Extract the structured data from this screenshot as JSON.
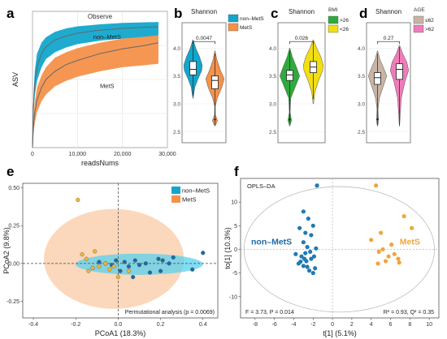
{
  "panels": {
    "a": "a",
    "b": "b",
    "c": "c",
    "d": "d",
    "e": "e",
    "f": "f"
  },
  "chart_data": [
    {
      "panel": "a",
      "type": "area",
      "title": "Observe",
      "xlabel": "readsNums",
      "ylabel": "ASV",
      "xlim": [
        0,
        30000
      ],
      "ylim": [
        0,
        1000
      ],
      "xticks": [
        0,
        10000,
        20000,
        30000
      ],
      "xtick_labels": [
        "0",
        "10,000",
        "20,000",
        "30,000"
      ],
      "yticks": [
        0,
        250,
        500,
        750,
        1000
      ],
      "grid": true,
      "series": [
        {
          "name": "non–MetS",
          "color": "#12a6cc",
          "x": [
            0,
            200,
            500,
            1000,
            2000,
            3000,
            5000,
            7500,
            10000,
            15000,
            20000,
            25000,
            28000
          ],
          "mean": [
            0,
            300,
            470,
            590,
            690,
            740,
            790,
            820,
            840,
            862,
            875,
            883,
            887
          ],
          "lower": [
            0,
            230,
            380,
            490,
            590,
            650,
            700,
            735,
            760,
            785,
            800,
            810,
            815
          ],
          "upper": [
            0,
            370,
            560,
            690,
            770,
            810,
            850,
            875,
            890,
            905,
            915,
            920,
            922
          ]
        },
        {
          "name": "MetS",
          "color": "#f4914a",
          "x": [
            0,
            200,
            500,
            1000,
            2000,
            3000,
            5000,
            7500,
            10000,
            15000,
            20000,
            25000,
            28000
          ],
          "mean": [
            0,
            150,
            260,
            350,
            440,
            500,
            560,
            610,
            640,
            690,
            725,
            750,
            770
          ],
          "lower": [
            0,
            100,
            180,
            260,
            340,
            390,
            450,
            490,
            520,
            560,
            590,
            605,
            615
          ],
          "upper": [
            0,
            200,
            330,
            440,
            530,
            590,
            660,
            700,
            730,
            770,
            800,
            815,
            825
          ]
        }
      ]
    },
    {
      "panel": "b",
      "type": "violin",
      "title": "Shannon",
      "ylim": [
        2.3,
        4.4
      ],
      "yticks": [
        2.5,
        3.0,
        3.5,
        4.0
      ],
      "annotation": "0.0047",
      "legend": {
        "title": "",
        "entries": [
          "non–MetS",
          "MetS"
        ]
      },
      "series": [
        {
          "name": "non–MetS",
          "color": "#12a6cc",
          "min": 3.15,
          "q1": 3.52,
          "median": 3.62,
          "q3": 3.76,
          "max": 4.12,
          "profile": [
            [
              3.1,
              0.02
            ],
            [
              3.3,
              0.2
            ],
            [
              3.45,
              0.55
            ],
            [
              3.6,
              0.95
            ],
            [
              3.7,
              1.0
            ],
            [
              3.85,
              0.7
            ],
            [
              4.0,
              0.3
            ],
            [
              4.15,
              0.02
            ]
          ]
        },
        {
          "name": "MetS",
          "color": "#f4914a",
          "min": 2.62,
          "q1": 3.27,
          "median": 3.42,
          "q3": 3.5,
          "max": 3.9,
          "outliers": [
            2.72
          ],
          "profile": [
            [
              2.6,
              0.02
            ],
            [
              2.7,
              0.28
            ],
            [
              2.8,
              0.05
            ],
            [
              2.95,
              0.03
            ],
            [
              3.1,
              0.25
            ],
            [
              3.3,
              0.75
            ],
            [
              3.45,
              1.0
            ],
            [
              3.6,
              0.6
            ],
            [
              3.8,
              0.2
            ],
            [
              3.95,
              0.02
            ]
          ]
        }
      ]
    },
    {
      "panel": "c",
      "type": "violin",
      "title": "Shannon",
      "ylim": [
        2.3,
        4.4
      ],
      "yticks": [
        2.5,
        3.0,
        3.5,
        4.0
      ],
      "annotation": "0.026",
      "legend": {
        "title": "BMI",
        "entries": [
          ">26",
          "<26"
        ]
      },
      "series": [
        {
          "name": ">26",
          "color": "#2faa3c",
          "min": 2.66,
          "q1": 3.42,
          "median": 3.52,
          "q3": 3.6,
          "max": 3.95,
          "outliers": [
            2.72
          ],
          "profile": [
            [
              2.6,
              0.02
            ],
            [
              2.7,
              0.18
            ],
            [
              2.85,
              0.04
            ],
            [
              3.1,
              0.1
            ],
            [
              3.3,
              0.55
            ],
            [
              3.5,
              1.0
            ],
            [
              3.65,
              0.7
            ],
            [
              3.85,
              0.25
            ],
            [
              4.0,
              0.02
            ]
          ]
        },
        {
          "name": "<26",
          "color": "#f2de12",
          "min": 3.08,
          "q1": 3.56,
          "median": 3.66,
          "q3": 3.76,
          "max": 4.12,
          "profile": [
            [
              3.0,
              0.02
            ],
            [
              3.2,
              0.15
            ],
            [
              3.4,
              0.5
            ],
            [
              3.6,
              0.95
            ],
            [
              3.7,
              1.0
            ],
            [
              3.85,
              0.75
            ],
            [
              4.0,
              0.35
            ],
            [
              4.15,
              0.02
            ]
          ]
        }
      ]
    },
    {
      "panel": "d",
      "type": "violin",
      "title": "Shannon",
      "ylim": [
        2.3,
        4.4
      ],
      "yticks": [
        2.5,
        3.0,
        3.5,
        4.0
      ],
      "annotation": "0.27",
      "legend": {
        "title": "AGE",
        "entries": [
          "≤62",
          ">62"
        ]
      },
      "series": [
        {
          "name": "≤62",
          "color": "#c9b4a5",
          "min": 2.62,
          "q1": 3.35,
          "median": 3.47,
          "q3": 3.56,
          "max": 3.9,
          "outliers": [
            2.72
          ],
          "profile": [
            [
              2.6,
              0.02
            ],
            [
              2.7,
              0.12
            ],
            [
              2.9,
              0.05
            ],
            [
              3.1,
              0.2
            ],
            [
              3.3,
              0.6
            ],
            [
              3.5,
              1.0
            ],
            [
              3.65,
              0.65
            ],
            [
              3.8,
              0.25
            ],
            [
              3.95,
              0.02
            ]
          ]
        },
        {
          "name": ">62",
          "color": "#f07cba",
          "min": 2.62,
          "q1": 3.44,
          "median": 3.62,
          "q3": 3.72,
          "max": 4.02,
          "profile": [
            [
              2.6,
              0.02
            ],
            [
              2.8,
              0.08
            ],
            [
              3.1,
              0.2
            ],
            [
              3.4,
              0.6
            ],
            [
              3.6,
              1.0
            ],
            [
              3.75,
              0.8
            ],
            [
              3.9,
              0.35
            ],
            [
              4.05,
              0.02
            ]
          ]
        }
      ]
    },
    {
      "panel": "e",
      "type": "scatter",
      "xlabel": "PCoA1 (18.3%)",
      "ylabel": "PCoA2 (9.8%)",
      "xlim": [
        -0.45,
        0.47
      ],
      "ylim": [
        -0.36,
        0.53
      ],
      "xticks": [
        -0.4,
        -0.2,
        0.0,
        0.2,
        0.4
      ],
      "yticks": [
        -0.25,
        0.0,
        0.25,
        0.5
      ],
      "annotation": "Permutational analysis (p = 0.0069)",
      "legend": {
        "entries": [
          "non–MetS",
          "MetS"
        ]
      },
      "ellipses": [
        {
          "name": "MetS",
          "color": "#f9c9a6",
          "cx": -0.02,
          "cy": 0.03,
          "rx": 0.33,
          "ry": 0.33
        },
        {
          "name": "non–MetS",
          "color": "#58d2ef",
          "cx": 0.1,
          "cy": -0.005,
          "rx": 0.3,
          "ry": 0.07
        }
      ],
      "series": [
        {
          "name": "non–MetS",
          "color": "#1c6aa5",
          "x": [
            0.4,
            0.35,
            0.24,
            0.21,
            0.2,
            0.19,
            0.13,
            0.1,
            0.08,
            0.05,
            0.03,
            0.01,
            -0.01,
            -0.03,
            -0.06,
            -0.09,
            -0.12,
            0.07,
            0.15,
            0.26
          ],
          "y": [
            0.07,
            -0.04,
            0.0,
            0.02,
            -0.05,
            0.03,
            0.0,
            -0.01,
            0.02,
            -0.02,
            0.01,
            -0.05,
            0.02,
            -0.01,
            0.0,
            0.01,
            -0.03,
            -0.09,
            -0.06,
            0.04
          ]
        },
        {
          "name": "MetS",
          "color": "#f2b335",
          "x": [
            -0.19,
            -0.17,
            -0.15,
            -0.12,
            -0.11,
            -0.09,
            -0.06,
            -0.04,
            0.0,
            0.05,
            -0.14,
            -0.02
          ],
          "y": [
            0.42,
            0.06,
            0.03,
            -0.03,
            0.08,
            -0.02,
            0.0,
            -0.04,
            -0.09,
            -0.05,
            -0.05,
            -0.02
          ]
        }
      ]
    },
    {
      "panel": "f",
      "type": "scatter",
      "title": "OPLS–DA",
      "xlabel": "t[1] (5.1%)",
      "ylabel": "to[1] (10.3%)",
      "xlim": [
        -9.5,
        11.0
      ],
      "ylim": [
        -14.5,
        15.0
      ],
      "xticks": [
        -8,
        -6,
        -4,
        -2,
        0,
        2,
        4,
        6,
        8,
        10
      ],
      "yticks": [
        -10,
        -5,
        0,
        5,
        10
      ],
      "annotations": [
        "F = 3.73, P = 0.014",
        "R² = 0.93, Q² = 0.35"
      ],
      "group_labels": [
        {
          "text": "non–MetS",
          "color": "#1c6aa5",
          "x": -6.3,
          "y": 1.0
        },
        {
          "text": "MetS",
          "color": "#f2a53a",
          "x": 8.0,
          "y": 1.0
        }
      ],
      "series": [
        {
          "name": "non–MetS",
          "color": "#1f7ab5",
          "x": [
            -1.6,
            -3.0,
            -2.5,
            -2.0,
            -3.4,
            -2.8,
            -2.2,
            -3.0,
            -2.6,
            -2.3,
            -3.8,
            -3.2,
            -2.9,
            -2.7,
            -2.2,
            -1.9,
            -3.0,
            -3.5,
            -2.6,
            -1.8,
            -2.4,
            -2.0,
            -3.3,
            -2.8,
            -1.7
          ],
          "y": [
            13.5,
            8.0,
            6.5,
            5.0,
            4.5,
            3.5,
            3.0,
            1.5,
            0.5,
            -0.5,
            -1.0,
            -1.5,
            -2.0,
            -2.5,
            -2.0,
            -1.5,
            -3.5,
            -3.0,
            -3.7,
            -4.0,
            -4.5,
            -5.0,
            -2.6,
            -0.8,
            0.2
          ]
        },
        {
          "name": "MetS",
          "color": "#f2a53a",
          "x": [
            4.5,
            7.4,
            8.2,
            5.0,
            4.0,
            6.1,
            5.2,
            4.8,
            6.4,
            5.8,
            6.8,
            5.5,
            4.7,
            6.9
          ],
          "y": [
            13.5,
            7.0,
            4.5,
            3.5,
            2.0,
            1.0,
            0.0,
            -0.5,
            -1.0,
            -1.5,
            -2.0,
            -2.5,
            -3.0,
            -2.8
          ]
        }
      ]
    }
  ]
}
